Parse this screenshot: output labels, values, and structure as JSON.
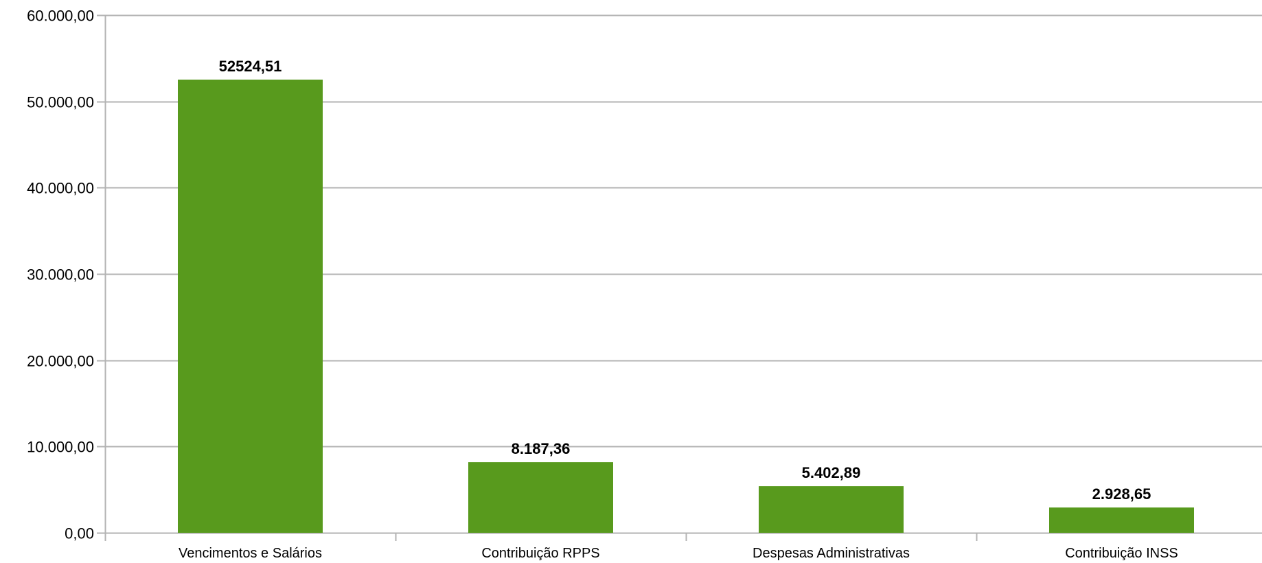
{
  "chart_data": {
    "type": "bar",
    "categories": [
      "Vencimentos e Salários",
      "Contribuição RPPS",
      "Despesas Administrativas",
      "Contribuição INSS"
    ],
    "values": [
      52524.51,
      8187.36,
      5402.89,
      2928.65
    ],
    "value_labels": [
      "52524,51",
      "8.187,36",
      "5.402,89",
      "2.928,65"
    ],
    "y_ticks": [
      0,
      10000,
      20000,
      30000,
      40000,
      50000,
      60000
    ],
    "y_tick_labels": [
      "0,00",
      "10.000,00",
      "20.000,00",
      "30.000,00",
      "40.000,00",
      "50.000,00",
      "60.000,00"
    ],
    "ylim": [
      0,
      60000
    ],
    "grid": true,
    "legend": "none",
    "colors": {
      "bar": "#589a1d",
      "grid": "#b3b3b3",
      "axis": "#b3b3b3"
    }
  }
}
